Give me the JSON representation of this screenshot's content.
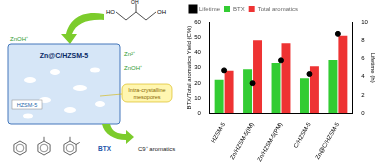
{
  "chart_data": {
    "type": "bar",
    "categories": [
      "HZSM-5",
      "Zn/HZSM-5(IM)",
      "Zn/HZSM-5(PM)",
      "C/HZSM-5",
      "Zn@C/HZSM-5"
    ],
    "series": [
      {
        "name": "BTX",
        "color": "#33cc33",
        "values": [
          22,
          29,
          33,
          23,
          35
        ]
      },
      {
        "name": "Total aromatics",
        "color": "#ee3333",
        "values": [
          28,
          48,
          46,
          31,
          51
        ]
      },
      {
        "name": "Lifetime",
        "color": "#000000",
        "type": "line",
        "marker": "circle",
        "line_style": "none",
        "axis": "y2",
        "values": [
          4.7,
          3.3,
          5.8,
          4.3,
          8.7
        ]
      }
    ],
    "y_label": "BTX/Total aromatics Yield (C%)",
    "y2_label": "Lifetime (h)",
    "ylim": [
      0,
      60
    ],
    "yticks": [
      0,
      10,
      20,
      30,
      40,
      50,
      60
    ],
    "y2lim": [
      0,
      10
    ],
    "y2ticks": [
      0,
      2,
      4,
      6,
      8,
      10
    ],
    "grid": false,
    "legend": "top left"
  },
  "diagram": {
    "catalyst_label": "Zn@C/HZSM-5",
    "site_labels": [
      "ZnOH⁺",
      "Zn²⁺",
      "ZnOH⁺"
    ],
    "support_label": "HZSM-5",
    "mesopore_label": [
      "Intra-crystalline",
      "mesopores"
    ],
    "glycerol_labels": [
      "HO",
      "OH",
      "OH"
    ],
    "products": [
      "BTX",
      "C9⁺ aromatics"
    ]
  }
}
